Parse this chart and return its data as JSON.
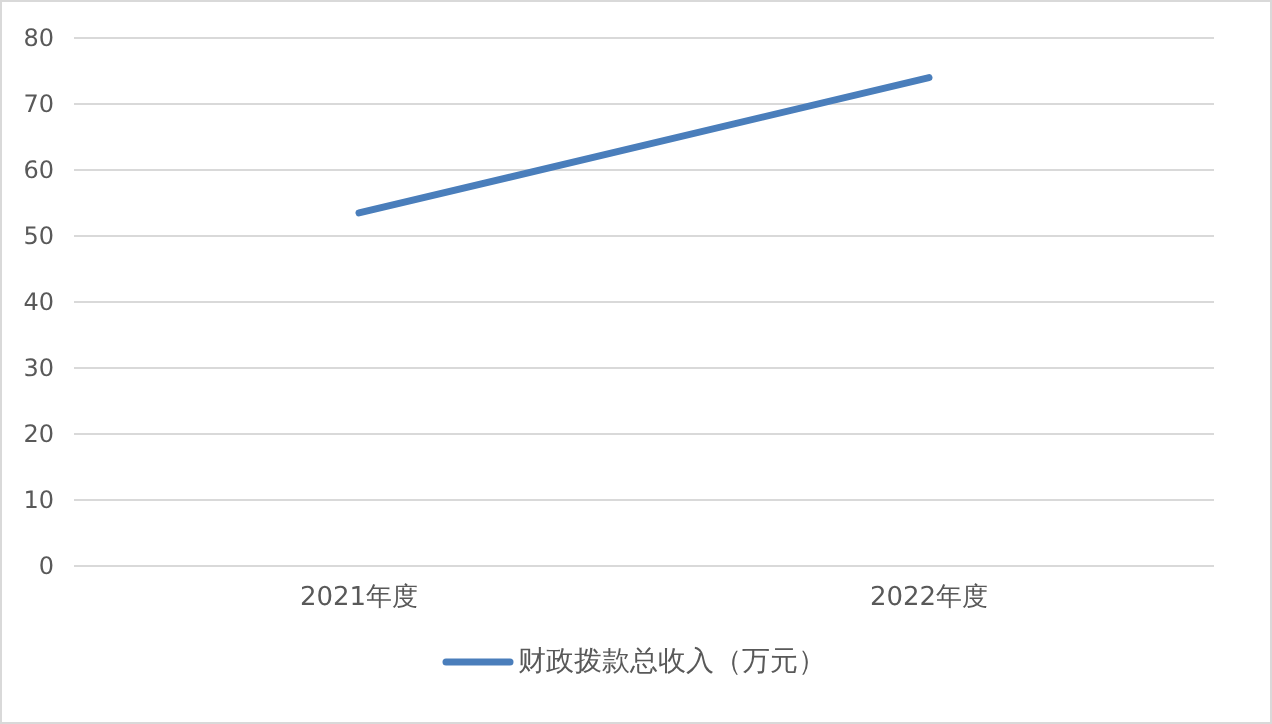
{
  "chart_data": {
    "type": "line",
    "categories": [
      "2021年度",
      "2022年度"
    ],
    "series": [
      {
        "name": "财政拨款总收入（万元）",
        "color": "#4a7ebb",
        "values": [
          53.5,
          74.0
        ]
      }
    ],
    "ylim": [
      0,
      80
    ],
    "yticks": [
      0,
      10,
      20,
      30,
      40,
      50,
      60,
      70,
      80
    ],
    "grid": "y",
    "legend": "bottom",
    "marker": "none",
    "line_style": "solid"
  }
}
